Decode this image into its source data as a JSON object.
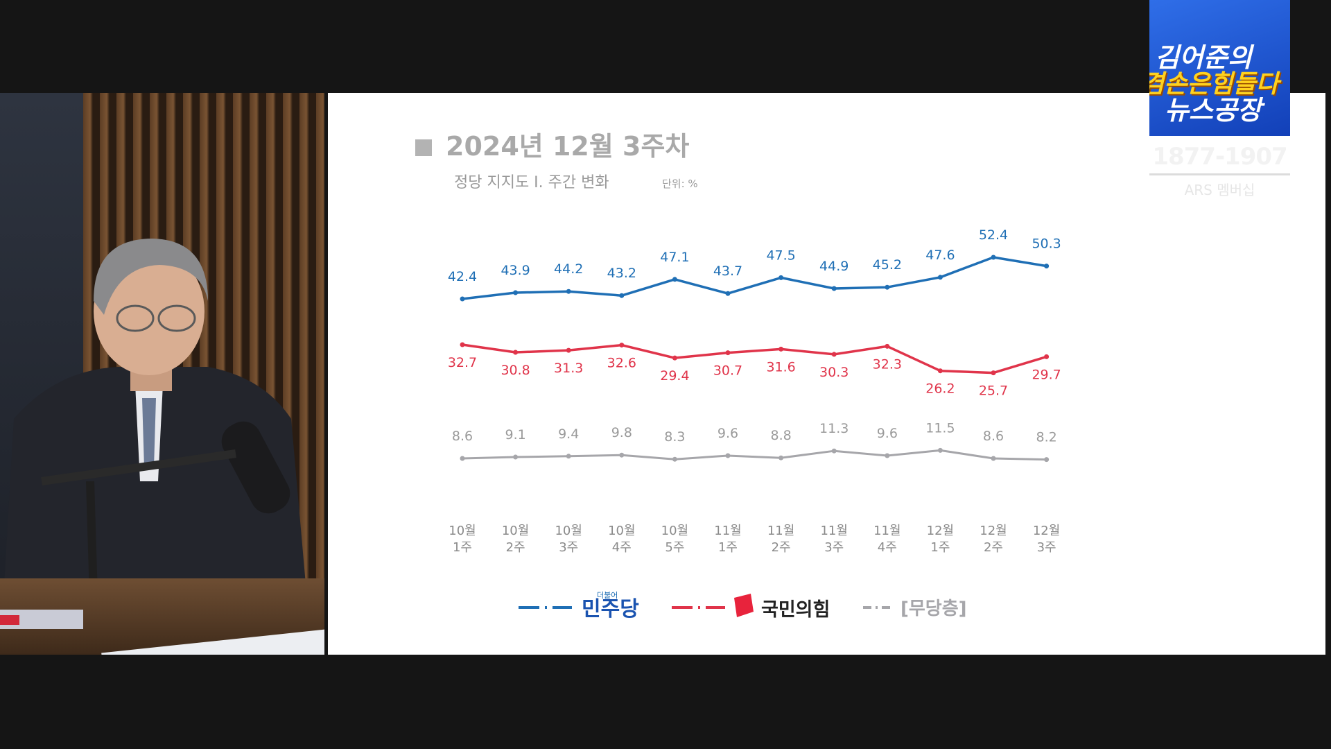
{
  "logo": {
    "line1": "김어준의",
    "line2": "겸손은힘들다",
    "line3": "뉴스공장"
  },
  "phone": "1877-1907",
  "ars_label": "ARS 멤버십",
  "chart_data": {
    "type": "line",
    "title": "2024년 12월 3주차",
    "subtitle": "정당 지지도 Ⅰ. 주간 변화",
    "unit": "단위: %",
    "categories": [
      "10월 1주",
      "10월 2주",
      "10월 3주",
      "10월 4주",
      "10월 5주",
      "11월 1주",
      "11월 2주",
      "11월 3주",
      "11월 4주",
      "12월 1주",
      "12월 2주",
      "12월 3주"
    ],
    "series": [
      {
        "name": "민주당",
        "color": "#1f6fb5",
        "label_position": "above",
        "values": [
          42.4,
          43.9,
          44.2,
          43.2,
          47.1,
          43.7,
          47.5,
          44.9,
          45.2,
          47.6,
          52.4,
          50.3
        ]
      },
      {
        "name": "국민의힘",
        "color": "#e0344a",
        "label_position": "below",
        "values": [
          32.7,
          30.8,
          31.3,
          32.6,
          29.4,
          30.7,
          31.6,
          30.3,
          32.3,
          26.2,
          25.7,
          29.7
        ]
      },
      {
        "name": "[무당층]",
        "color": "#a6a6aa",
        "label_position": "above",
        "values": [
          8.6,
          9.1,
          9.4,
          9.8,
          8.3,
          9.6,
          8.8,
          11.3,
          9.6,
          11.5,
          8.6,
          8.2
        ]
      }
    ],
    "legend": {
      "placement": "bottom",
      "minjoo_small_label": "더불어"
    },
    "grid": false
  }
}
